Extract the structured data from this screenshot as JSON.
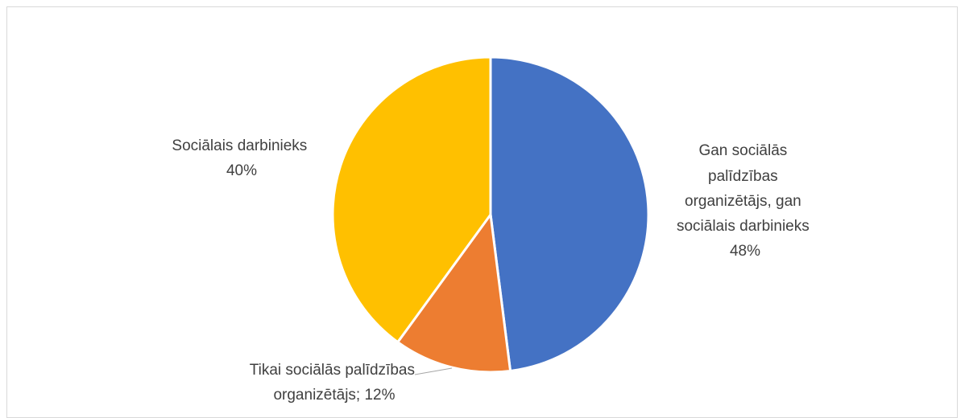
{
  "chart_data": {
    "type": "pie",
    "slices": [
      {
        "category": "Gan sociālās palīdzības organizētājs, gan sociālais darbinieks",
        "value": 48,
        "color": "#4472C4",
        "label_lines": [
          "Gan sociālās",
          "palīdzības",
          "organizētājs, gan",
          "sociālais darbinieks"
        ],
        "value_text": "48%"
      },
      {
        "category": "Tikai sociālās palīdzības organizētājs",
        "value": 12,
        "color": "#ED7D31",
        "label_lines": [
          "Tikai sociālās palīdzības"
        ],
        "value_text": "organizētājs; 12%"
      },
      {
        "category": "Sociālais darbinieks",
        "value": 40,
        "color": "#FFC000",
        "label_lines": [
          "Sociālais darbinieks"
        ],
        "value_text": "40%"
      }
    ]
  }
}
